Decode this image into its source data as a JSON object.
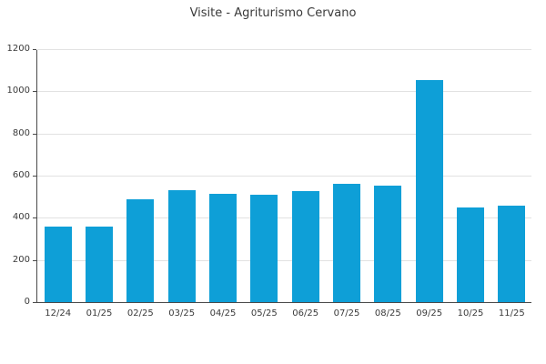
{
  "chart_data": {
    "type": "bar",
    "title": "Visite - Agriturismo Cervano",
    "categories": [
      "12/24",
      "01/25",
      "02/25",
      "03/25",
      "04/25",
      "05/25",
      "06/25",
      "07/25",
      "08/25",
      "09/25",
      "10/25",
      "11/25"
    ],
    "values": [
      357,
      357,
      488,
      532,
      514,
      509,
      525,
      563,
      551,
      1055,
      448,
      456
    ],
    "xlabel": "",
    "ylabel": "",
    "yticks": [
      0,
      200,
      400,
      600,
      800,
      1000,
      1200
    ],
    "ylim": [
      0,
      1200
    ],
    "grid": true,
    "legend_position": "none",
    "colors": {
      "bar": "#0e9fd7",
      "axis": "#4a4a4a",
      "grid": "#e2e2e2",
      "text": "#3a3a3a",
      "background": "#ffffff"
    }
  }
}
